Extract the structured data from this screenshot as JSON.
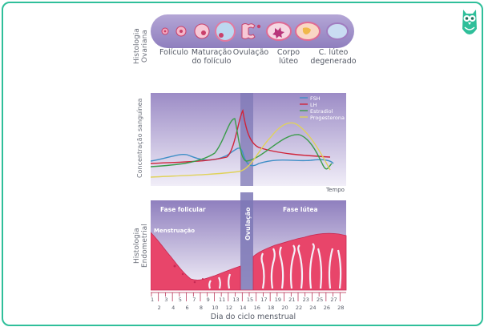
{
  "ovarian": {
    "axis_label_line1": "Histologia",
    "axis_label_line2": "Ovariana",
    "stages": [
      "Folículo",
      "Maturação do folículo",
      "Ovulação",
      "Corpo lúteo",
      "C. lúteo degenerado"
    ],
    "stage_line1": [
      "Folículo",
      "Maturação",
      "Ovulação",
      "Corpo",
      "C. lúteo"
    ],
    "stage_line2": [
      "",
      "do folículo",
      "",
      "lúteo",
      "degenerado"
    ]
  },
  "hormone_chart": {
    "ylabel": "Concentração sanguínea",
    "xlabel": "Tempo",
    "legend": [
      {
        "name": "FSH",
        "color": "#3f8fc7"
      },
      {
        "name": "LH",
        "color": "#d0243a"
      },
      {
        "name": "Estradiol",
        "color": "#3a9c4a"
      },
      {
        "name": "Progesterona",
        "color": "#e0d25a"
      }
    ]
  },
  "endometrial": {
    "axis_label_line1": "Histologia",
    "axis_label_line2": "Endometrial",
    "phase_follicular": "Fase folicular",
    "phase_luteal": "Fase lútea",
    "ovulation": "Ovulação",
    "menstruation": "Menstruação",
    "days_odd": [
      "1",
      "3",
      "5",
      "7",
      "9",
      "11",
      "13",
      "15",
      "17",
      "19",
      "21",
      "23",
      "25",
      "27"
    ],
    "days_even": [
      "2",
      "4",
      "6",
      "8",
      "10",
      "12",
      "14",
      "16",
      "18",
      "20",
      "22",
      "24",
      "26",
      "28"
    ],
    "xlabel": "Dia do ciclo menstrual"
  },
  "colors": {
    "frame": "#2fbf9a",
    "panel": "#9f8fc4",
    "ovulation_band": "#7d78b6",
    "endometrium": "#e8456a"
  }
}
